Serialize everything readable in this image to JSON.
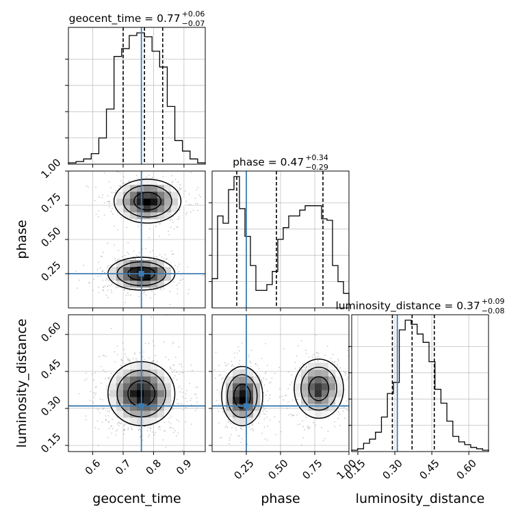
{
  "chart_data": {
    "type": "corner",
    "parameters": [
      "geocent_time",
      "phase",
      "luminosity_distance"
    ],
    "colors": {
      "truth": "#3b7bb2",
      "histogram": "#000000",
      "grid": "#c0c0c0",
      "quantile": "#000000"
    },
    "grid": true,
    "diagonal": [
      {
        "parameter": "geocent_time",
        "title_prefix": "geocent_time = 0.77",
        "title_plus": "+0.06",
        "title_minus": "−0.07",
        "median": 0.77,
        "q16": 0.7,
        "q84": 0.83,
        "truth": 0.76,
        "range": [
          0.52,
          0.97
        ],
        "tick_values": [
          0.6,
          0.7,
          0.8,
          0.9
        ],
        "tick_labels": [
          "0.6",
          "0.7",
          "0.8",
          "0.9"
        ],
        "hist_counts": [
          1,
          2,
          4,
          8,
          20,
          42,
          82,
          88,
          98,
          100,
          97,
          86,
          74,
          44,
          18,
          10,
          4,
          1
        ]
      },
      {
        "parameter": "phase",
        "title_prefix": "phase = 0.47",
        "title_plus": "+0.34",
        "title_minus": "−0.29",
        "median": 0.47,
        "q16": 0.18,
        "q84": 0.81,
        "truth": 0.25,
        "range": [
          0.0,
          1.0
        ],
        "tick_values": [
          0.25,
          0.5,
          0.75,
          1.0
        ],
        "tick_labels": [
          "0.25",
          "0.50",
          "0.75",
          "1.00"
        ],
        "hist_counts": [
          20,
          63,
          58,
          81,
          90,
          68,
          49,
          29,
          12,
          12,
          16,
          25,
          47,
          55,
          63,
          63,
          67,
          70,
          70,
          70,
          61,
          60,
          29,
          18,
          10
        ]
      },
      {
        "parameter": "luminosity_distance",
        "title_prefix": "luminosity_distance = 0.37",
        "title_plus": "+0.09",
        "title_minus": "−0.08",
        "median": 0.37,
        "q16": 0.29,
        "q84": 0.46,
        "truth": 0.31,
        "range": [
          0.125,
          0.68
        ],
        "tick_values": [
          0.15,
          0.3,
          0.45,
          0.6
        ],
        "tick_labels": [
          "0.15",
          "0.30",
          "0.45",
          "0.60"
        ],
        "hist_counts": [
          1,
          2,
          6,
          9,
          14,
          25,
          42,
          50,
          88,
          95,
          92,
          85,
          79,
          65,
          45,
          35,
          22,
          11,
          7,
          5,
          3,
          2,
          1
        ]
      }
    ],
    "axis_labels": {
      "x": [
        "geocent_time",
        "phase",
        "luminosity_distance"
      ],
      "y": [
        "phase",
        "luminosity_distance"
      ]
    },
    "pairs": [
      {
        "x": "geocent_time",
        "y": "phase",
        "truth": [
          0.76,
          0.25
        ],
        "modes": [
          {
            "center": [
              0.76,
              0.25
            ],
            "sigma": [
              0.055,
              0.06
            ],
            "weight": 1.0
          },
          {
            "center": [
              0.78,
              0.78
            ],
            "sigma": [
              0.055,
              0.08
            ],
            "weight": 0.9
          }
        ]
      },
      {
        "x": "geocent_time",
        "y": "luminosity_distance",
        "truth": [
          0.76,
          0.31
        ],
        "modes": [
          {
            "center": [
              0.76,
              0.36
            ],
            "sigma": [
              0.055,
              0.065
            ],
            "weight": 1.0
          }
        ]
      },
      {
        "x": "phase",
        "y": "luminosity_distance",
        "truth": [
          0.25,
          0.31
        ],
        "modes": [
          {
            "center": [
              0.22,
              0.35
            ],
            "sigma": [
              0.075,
              0.06
            ],
            "weight": 1.0
          },
          {
            "center": [
              0.78,
              0.38
            ],
            "sigma": [
              0.09,
              0.06
            ],
            "weight": 0.8
          }
        ]
      }
    ]
  }
}
